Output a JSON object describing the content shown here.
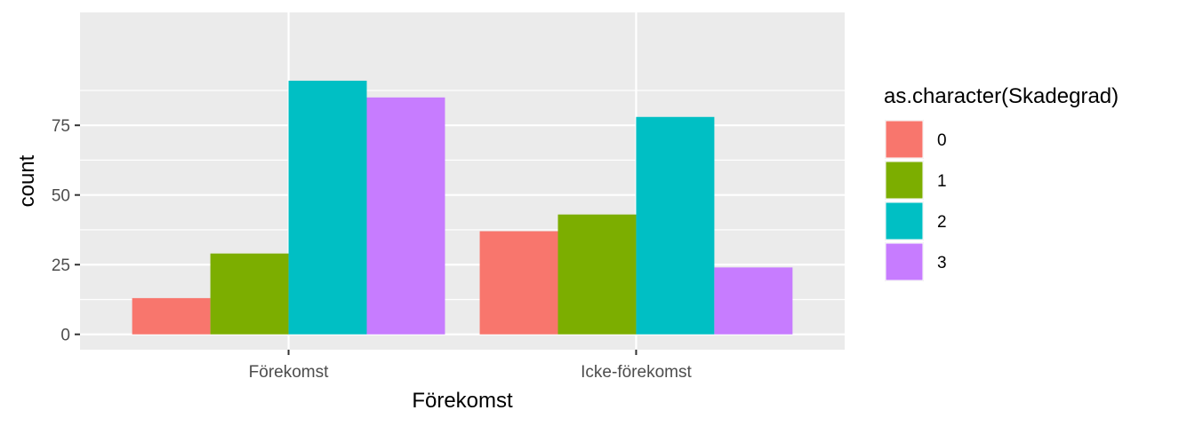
{
  "chart_data": {
    "type": "bar",
    "categories": [
      "Förekomst",
      "Icke-förekomst"
    ],
    "series": [
      {
        "name": "0",
        "color": "#F8766D",
        "values": [
          13,
          37
        ]
      },
      {
        "name": "1",
        "color": "#7CAE00",
        "values": [
          29,
          43
        ]
      },
      {
        "name": "2",
        "color": "#00BFC4",
        "values": [
          91,
          78
        ]
      },
      {
        "name": "3",
        "color": "#C77CFF",
        "values": [
          85,
          24
        ]
      }
    ],
    "xlabel": "Förekomst",
    "ylabel": "count",
    "ylim": [
      -5.5,
      115.5
    ],
    "yticks": [
      0,
      25,
      50,
      75
    ],
    "grid": true,
    "panel_background": "#EBEBEB",
    "legend": {
      "title": "as.character(Skadegrad)",
      "position": "right"
    }
  }
}
